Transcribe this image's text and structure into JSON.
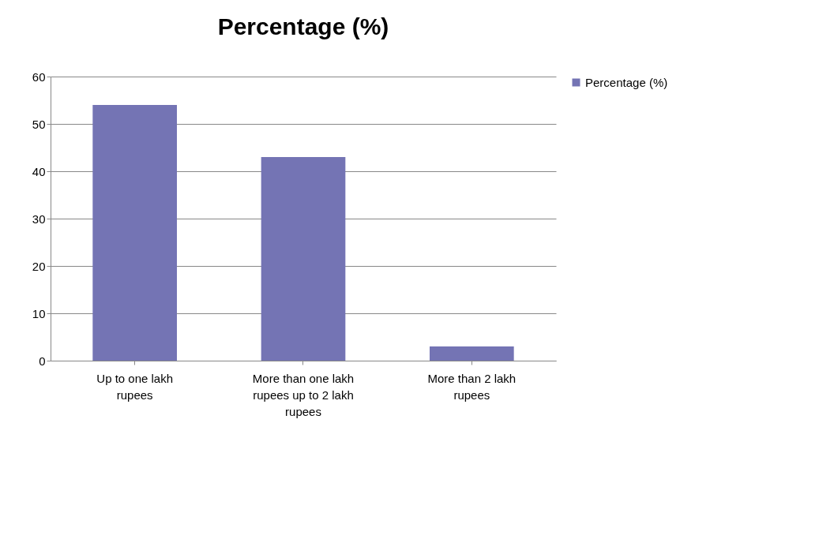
{
  "chart_data": {
    "type": "bar",
    "title": "Percentage (%)",
    "categories": [
      "Up to one lakh rupees",
      "More than one lakh rupees up to 2 lakh rupees",
      "More than 2 lakh rupees"
    ],
    "series": [
      {
        "name": "Percentage (%)",
        "color": "#7474b4",
        "values": [
          54,
          43,
          3
        ]
      }
    ],
    "ylim": [
      0,
      60
    ],
    "yticks": [
      0,
      10,
      20,
      30,
      40,
      50,
      60
    ],
    "grid": "y",
    "legend": "right"
  }
}
